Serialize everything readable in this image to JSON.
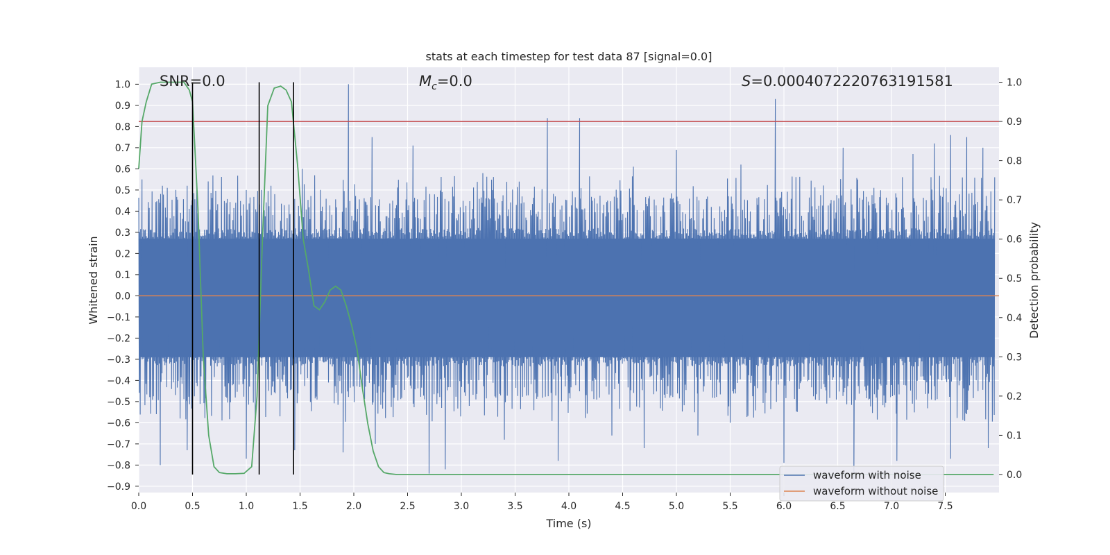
{
  "chart_data": {
    "type": "line",
    "title": "stats at each timestep for test data 87 [signal=0.0]",
    "xlabel": "Time (s)",
    "ylabel": "Whitened strain",
    "y2label": "Detection probability",
    "xlim": [
      0.0,
      8.0
    ],
    "ylim": [
      -0.93,
      1.08
    ],
    "y2lim": [
      -0.046,
      1.038
    ],
    "x_ticks": [
      0.0,
      0.5,
      1.0,
      1.5,
      2.0,
      2.5,
      3.0,
      3.5,
      4.0,
      4.5,
      5.0,
      5.5,
      6.0,
      6.5,
      7.0,
      7.5
    ],
    "x_tick_labels": [
      "0.0",
      "0.5",
      "1.0",
      "1.5",
      "2.0",
      "2.5",
      "3.0",
      "3.5",
      "4.0",
      "4.5",
      "5.0",
      "5.5",
      "6.0",
      "6.5",
      "7.0",
      "7.5"
    ],
    "y_ticks": [
      -0.9,
      -0.8,
      -0.7,
      -0.6,
      -0.5,
      -0.4,
      -0.3,
      -0.2,
      -0.1,
      0.0,
      0.1,
      0.2,
      0.3,
      0.4,
      0.5,
      0.6,
      0.7,
      0.8,
      0.9,
      1.0
    ],
    "y_tick_labels": [
      "−0.9",
      "−0.8",
      "−0.7",
      "−0.6",
      "−0.5",
      "−0.4",
      "−0.3",
      "−0.2",
      "−0.1",
      "0.0",
      "0.1",
      "0.2",
      "0.3",
      "0.4",
      "0.5",
      "0.6",
      "0.7",
      "0.8",
      "0.9",
      "1.0"
    ],
    "y2_ticks": [
      0.0,
      0.1,
      0.2,
      0.3,
      0.4,
      0.5,
      0.6,
      0.7,
      0.8,
      0.9,
      1.0
    ],
    "y2_tick_labels": [
      "0.0",
      "0.1",
      "0.2",
      "0.3",
      "0.4",
      "0.5",
      "0.6",
      "0.7",
      "0.8",
      "0.9",
      "1.0"
    ],
    "annotations": {
      "snr": "SNR=0.0",
      "mc_symbol": "M",
      "mc_sub": "c",
      "mc_value": "=0.0",
      "s_symbol": "S",
      "s_value": "=0.0004072220763191581"
    },
    "series": [
      {
        "name": "waveform with noise",
        "color": "#4c72b0",
        "description": "dense noisy strain, mostly within about -0.5..0.5",
        "band_lower": -0.47,
        "band_upper": 0.45,
        "core_lower": -0.29,
        "core_upper": 0.27,
        "peaks_up": [
          [
            0.03,
            0.55
          ],
          [
            0.22,
            0.52
          ],
          [
            0.45,
            0.52
          ],
          [
            1.0,
            0.5
          ],
          [
            1.23,
            0.52
          ],
          [
            1.52,
            0.6
          ],
          [
            1.95,
            1.0
          ],
          [
            2.17,
            0.75
          ],
          [
            2.55,
            0.71
          ],
          [
            3.2,
            0.58
          ],
          [
            3.8,
            0.84
          ],
          [
            4.1,
            0.84
          ],
          [
            4.6,
            0.61
          ],
          [
            5.0,
            0.69
          ],
          [
            5.6,
            0.62
          ],
          [
            5.92,
            0.93
          ],
          [
            6.55,
            0.7
          ],
          [
            7.2,
            0.67
          ],
          [
            7.4,
            0.72
          ],
          [
            7.55,
            0.76
          ],
          [
            7.7,
            0.75
          ],
          [
            7.85,
            0.7
          ]
        ],
        "peaks_down": [
          [
            0.2,
            -0.8
          ],
          [
            0.45,
            -0.73
          ],
          [
            1.0,
            -0.77
          ],
          [
            1.45,
            -0.73
          ],
          [
            1.9,
            -0.74
          ],
          [
            2.2,
            -0.7
          ],
          [
            2.7,
            -0.84
          ],
          [
            2.85,
            -0.82
          ],
          [
            3.4,
            -0.68
          ],
          [
            3.9,
            -0.78
          ],
          [
            4.4,
            -0.66
          ],
          [
            4.7,
            -0.72
          ],
          [
            5.2,
            -0.66
          ],
          [
            5.5,
            -0.6
          ],
          [
            6.0,
            -0.79
          ],
          [
            6.65,
            -0.87
          ],
          [
            7.05,
            -0.78
          ],
          [
            7.55,
            -0.77
          ],
          [
            7.9,
            -0.72
          ]
        ]
      },
      {
        "name": "waveform without noise",
        "color": "#dd8452",
        "y_value": 0.0
      },
      {
        "name": "detection probability",
        "color": "#55a868",
        "axis": "right",
        "x": [
          0.0,
          0.03,
          0.07,
          0.12,
          0.2,
          0.3,
          0.42,
          0.47,
          0.5,
          0.55,
          0.6,
          0.65,
          0.7,
          0.75,
          0.82,
          0.9,
          0.98,
          1.05,
          1.1,
          1.15,
          1.2,
          1.26,
          1.32,
          1.37,
          1.42,
          1.48,
          1.53,
          1.58,
          1.63,
          1.68,
          1.73,
          1.78,
          1.83,
          1.88,
          1.93,
          1.98,
          2.03,
          2.08,
          2.13,
          2.18,
          2.23,
          2.28,
          2.33,
          2.4,
          2.6,
          3.0,
          3.5,
          4.0,
          5.0,
          6.0,
          7.0,
          7.95
        ],
        "y": [
          0.78,
          0.9,
          0.95,
          0.995,
          1.0,
          1.0,
          1.0,
          0.98,
          0.95,
          0.68,
          0.3,
          0.1,
          0.02,
          0.005,
          0.002,
          0.002,
          0.003,
          0.02,
          0.2,
          0.6,
          0.94,
          0.985,
          0.99,
          0.98,
          0.95,
          0.78,
          0.6,
          0.52,
          0.43,
          0.42,
          0.44,
          0.47,
          0.48,
          0.47,
          0.43,
          0.38,
          0.32,
          0.22,
          0.13,
          0.06,
          0.02,
          0.005,
          0.002,
          0.0,
          0.0,
          0.0,
          0.0,
          0.0,
          0.0,
          0.0,
          0.0,
          0.0
        ]
      }
    ],
    "threshold": {
      "color": "#c44e52",
      "value": 0.9
    },
    "vertical_markers": {
      "color": "#000000",
      "x": [
        0.5,
        1.12,
        1.44
      ]
    },
    "legend": {
      "placement": "lower-right",
      "entries": [
        {
          "label": "waveform with noise",
          "color": "#4c72b0"
        },
        {
          "label": "waveform without noise",
          "color": "#dd8452"
        }
      ]
    },
    "grid": true,
    "style": {
      "plot_bg": "#eaeaf2",
      "grid_color": "#ffffff"
    }
  }
}
